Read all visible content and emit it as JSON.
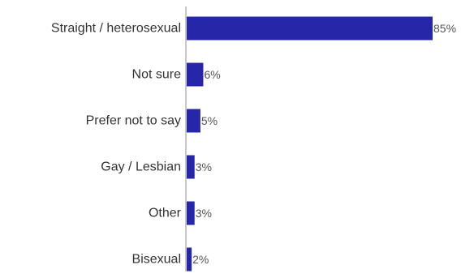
{
  "chart_data": {
    "type": "bar",
    "orientation": "horizontal",
    "categories": [
      "Straight / heterosexual",
      "Not sure",
      "Prefer not to say",
      "Gay / Lesbian",
      "Other",
      "Bisexual"
    ],
    "values": [
      85,
      6,
      5,
      3,
      3,
      2
    ],
    "value_labels": [
      "85%",
      "6%",
      "5%",
      "3%",
      "3%",
      "2%"
    ],
    "unit": "%",
    "xlim": [
      0,
      85
    ],
    "grid": false,
    "legend": "none",
    "bar_color": "#2626a8",
    "axis_color": "#c8c8c8",
    "label_color": "#333333",
    "value_label_color": "#555555"
  }
}
